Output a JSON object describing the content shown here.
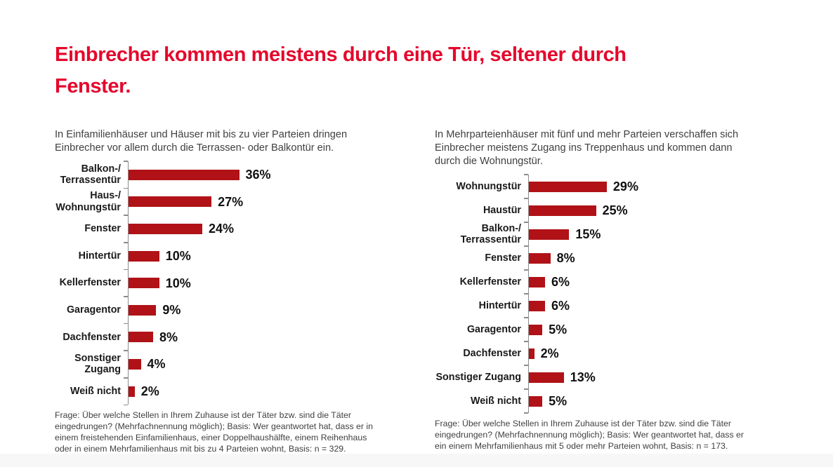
{
  "title": "Einbrecher kommen meistens durch eine Tür, seltener durch\nFenster.",
  "colors": {
    "title_red": "#E4082C",
    "bar_red": "#B01217",
    "axis_gray": "#8C8C8C",
    "text_gray": "#3F3F3F",
    "bottom_strip": "#f7f7f7"
  },
  "chart_data": [
    {
      "type": "bar",
      "orientation": "horizontal",
      "intro": "In Einfamilienhäuser und Häuser mit bis zu vier Parteien dringen\nEinbrecher vor allem durch die Terrassen- oder Balkontür ein.",
      "categories": [
        "Balkon-/\nTerrassentür",
        "Haus-/\nWohnungstür",
        "Fenster",
        "Hintertür",
        "Kellerfenster",
        "Garagentor",
        "Dachfenster",
        "Sonstiger Zugang",
        "Weiß nicht"
      ],
      "values": [
        36,
        27,
        24,
        10,
        10,
        9,
        8,
        4,
        2
      ],
      "unit": "%",
      "xmax": 40,
      "grid": false,
      "legend": false,
      "footnote": "Frage: Über welche Stellen in Ihrem Zuhause ist der Täter bzw. sind die Täter\neingedrungen? (Mehrfachnennung möglich); Basis: Wer geantwortet hat, dass er in\neinem freistehenden Einfamilienhaus, einer Doppelhaushälfte, einem Reihenhaus\noder in einem Mehrfamilienhaus mit bis zu 4 Parteien wohnt, Basis: n = 329."
    },
    {
      "type": "bar",
      "orientation": "horizontal",
      "intro": "In Mehrparteienhäuser mit fünf und mehr Parteien verschaffen sich\nEinbrecher meistens Zugang ins Treppenhaus und kommen dann\ndurch die Wohnungstür.",
      "categories": [
        "Wohnungstür",
        "Haustür",
        "Balkon-/\nTerrassentür",
        "Fenster",
        "Kellerfenster",
        "Hintertür",
        "Garagentor",
        "Dachfenster",
        "Sonstiger Zugang",
        "Weiß nicht"
      ],
      "values": [
        29,
        25,
        15,
        8,
        6,
        6,
        5,
        2,
        13,
        5
      ],
      "unit": "%",
      "xmax": 40,
      "grid": false,
      "legend": false,
      "footnote": "Frage: Über welche Stellen in Ihrem Zuhause ist der Täter bzw. sind die Täter\neingedrungen? (Mehrfachnennung möglich); Basis: Wer geantwortet hat, dass er\nein einem Mehrfamilienhaus mit 5 oder mehr Parteien wohnt, Basis: n = 173."
    }
  ]
}
